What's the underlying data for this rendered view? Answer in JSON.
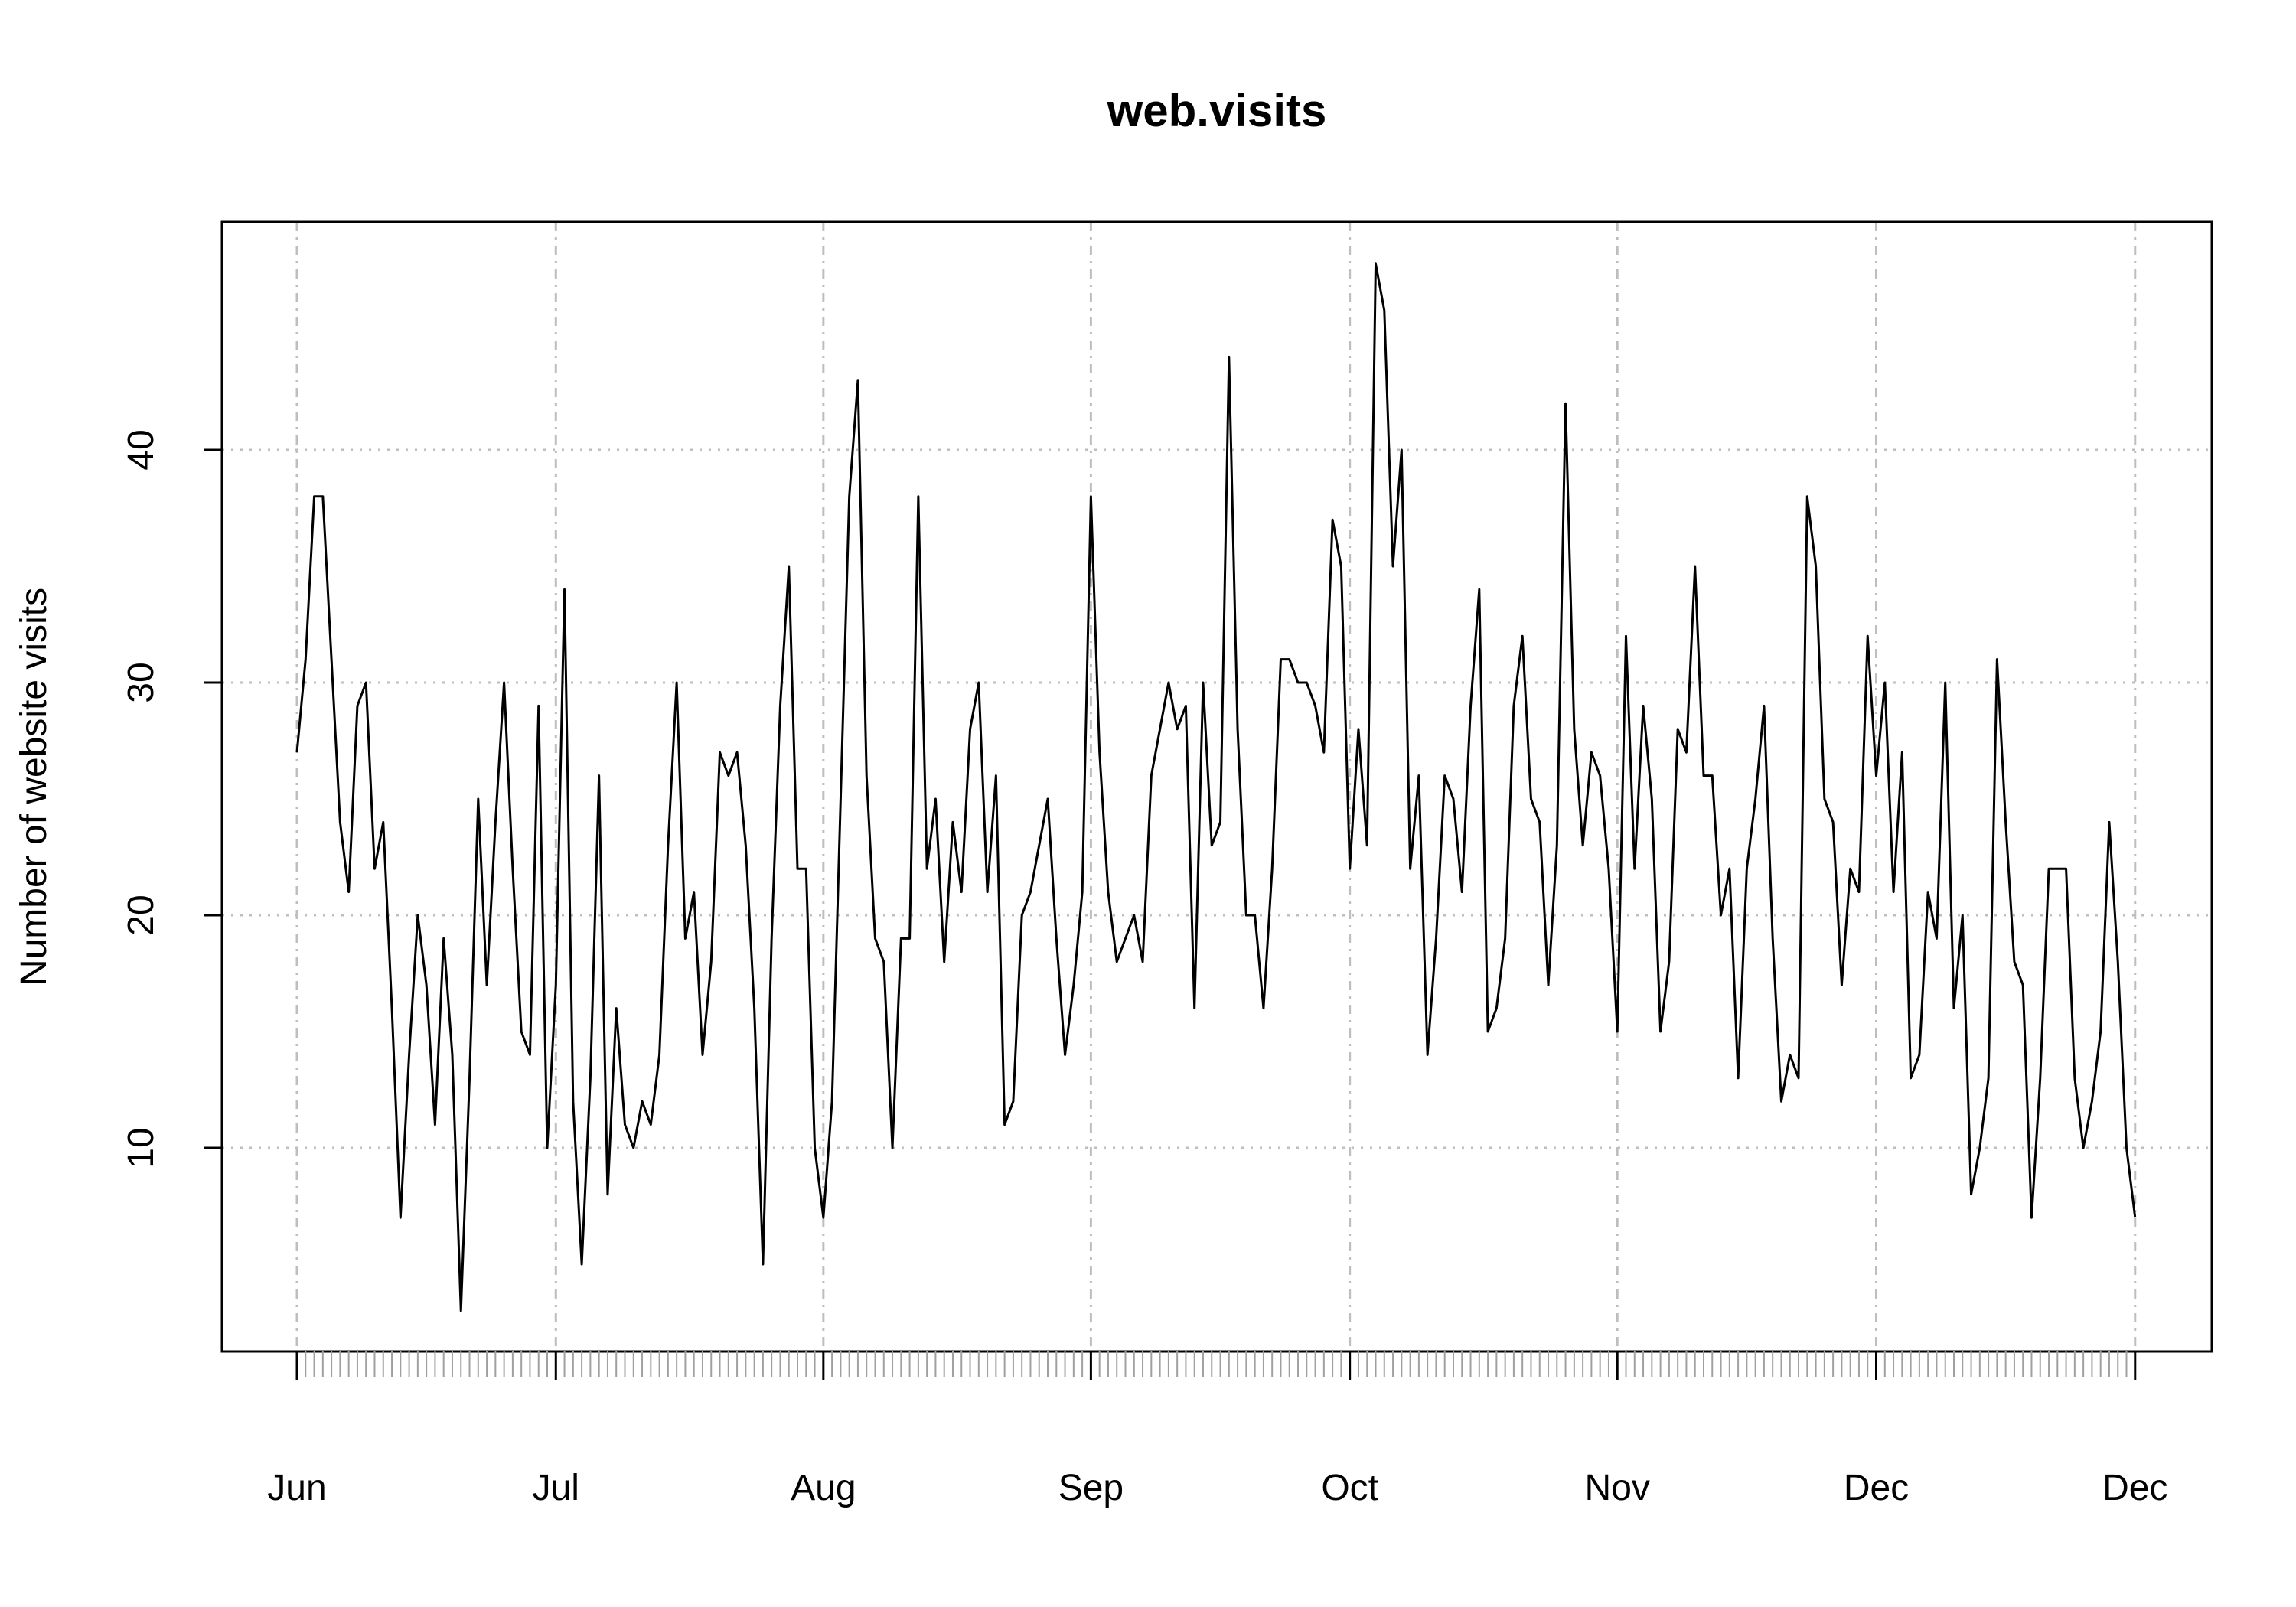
{
  "chart_data": {
    "type": "line",
    "title": "web.visits",
    "xlabel": "",
    "ylabel": "Number of website visits",
    "ylim": [
      2,
      50
    ],
    "xlim": [
      1,
      217
    ],
    "grid": true,
    "colors": {
      "line": "#000000",
      "grid": "#bebebe",
      "axis": "#000000"
    },
    "y_ticks": [
      {
        "value": 10,
        "label": "10"
      },
      {
        "value": 20,
        "label": "20"
      },
      {
        "value": 30,
        "label": "30"
      },
      {
        "value": 40,
        "label": "40"
      }
    ],
    "x_ticks": [
      {
        "day": 1,
        "label": "Jun"
      },
      {
        "day": 31,
        "label": "Jul"
      },
      {
        "day": 62,
        "label": "Aug"
      },
      {
        "day": 93,
        "label": "Sep"
      },
      {
        "day": 123,
        "label": "Oct"
      },
      {
        "day": 154,
        "label": "Nov"
      },
      {
        "day": 184,
        "label": "Dec"
      },
      {
        "day": 214,
        "label": "Dec"
      }
    ],
    "series": [
      {
        "values": [
          27,
          31,
          38,
          38,
          31,
          24,
          21,
          29,
          30,
          22,
          24,
          16,
          7,
          14,
          20,
          17,
          11,
          19,
          14,
          3,
          13,
          25,
          17,
          24,
          30,
          22,
          15,
          14,
          29,
          10,
          17,
          34,
          12,
          5,
          13,
          26,
          8,
          16,
          11,
          10,
          12,
          11,
          14,
          23,
          30,
          19,
          21,
          14,
          18,
          27,
          26,
          27,
          23,
          16,
          5,
          19,
          29,
          35,
          22,
          22,
          10,
          7,
          12,
          25,
          38,
          43,
          26,
          19,
          18,
          10,
          19,
          19,
          38,
          22,
          25,
          18,
          24,
          21,
          28,
          30,
          21,
          26,
          11,
          12,
          20,
          21,
          23,
          25,
          19,
          14,
          17,
          21,
          38,
          27,
          21,
          18,
          19,
          20,
          18,
          26,
          28,
          30,
          28,
          29,
          16,
          30,
          23,
          24,
          44,
          28,
          20,
          20,
          16,
          22,
          31,
          31,
          30,
          30,
          29,
          27,
          37,
          35,
          22,
          28,
          23,
          48,
          46,
          35,
          40,
          22,
          26,
          14,
          19,
          26,
          25,
          21,
          29,
          34,
          15,
          16,
          19,
          29,
          32,
          25,
          24,
          17,
          23,
          42,
          28,
          23,
          27,
          26,
          22,
          15,
          32,
          22,
          29,
          25,
          15,
          18,
          28,
          27,
          35,
          26,
          26,
          20,
          22,
          13,
          22,
          25,
          29,
          19,
          12,
          14,
          13,
          38,
          35,
          25,
          24,
          17,
          22,
          21,
          32,
          26,
          30,
          21,
          27,
          13,
          14,
          21,
          19,
          30,
          16,
          20,
          8,
          10,
          13,
          31,
          24,
          18,
          17,
          7,
          13,
          22,
          22,
          22,
          13,
          10,
          12,
          15,
          24,
          18,
          10,
          7
        ]
      }
    ]
  }
}
